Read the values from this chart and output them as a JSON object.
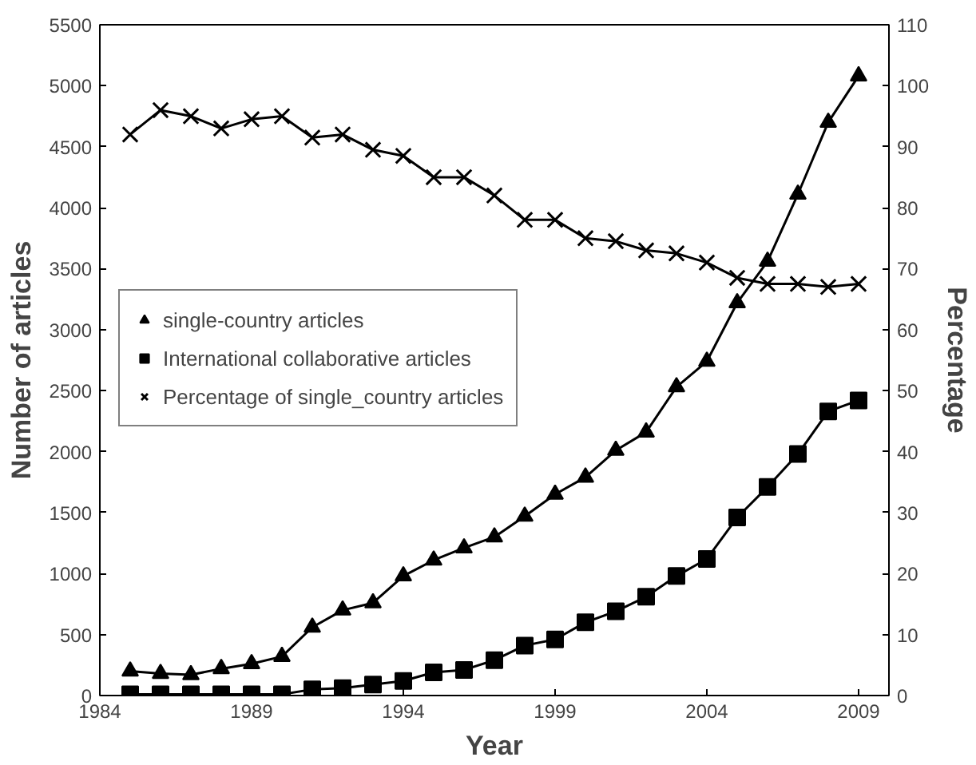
{
  "chart_data": {
    "type": "line",
    "xlabel": "Year",
    "ylabel": "Number of articles",
    "y2label": "Percentage",
    "x": [
      1985,
      1986,
      1987,
      1988,
      1989,
      1990,
      1991,
      1992,
      1993,
      1994,
      1995,
      1996,
      1997,
      1998,
      1999,
      2000,
      2001,
      2002,
      2003,
      2004,
      2005,
      2006,
      2007,
      2008,
      2009
    ],
    "series": [
      {
        "name": "single-country articles",
        "color": "#000000",
        "marker": "triangle",
        "values": [
          200,
          180,
          170,
          220,
          260,
          320,
          560,
          700,
          760,
          980,
          1110,
          1210,
          1300,
          1470,
          1650,
          1790,
          2010,
          2160,
          2530,
          2740,
          3220,
          3560,
          4110,
          4700,
          5080
        ]
      },
      {
        "name": "International collaborative articles",
        "color": "#000000",
        "marker": "square",
        "values": [
          10,
          10,
          10,
          10,
          10,
          10,
          50,
          60,
          90,
          120,
          190,
          210,
          290,
          410,
          460,
          600,
          690,
          810,
          980,
          1120,
          1460,
          1710,
          1980,
          2330,
          2420
        ]
      },
      {
        "name": "Percentage of single_country articles",
        "color": "#000000",
        "marker": "cross",
        "axis": "y2",
        "values": [
          92,
          96,
          95,
          93,
          94.5,
          95,
          91.5,
          92,
          89.5,
          88.5,
          85,
          85,
          82,
          78,
          78,
          75,
          74.5,
          73,
          72.5,
          71,
          68.5,
          67.5,
          67.5,
          67,
          67.5
        ]
      }
    ],
    "xlim": [
      1984,
      2010
    ],
    "xticks": [
      1984,
      1989,
      1994,
      1999,
      2004,
      2009
    ],
    "ylim": [
      0,
      5500
    ],
    "yticks": [
      0,
      500,
      1000,
      1500,
      2000,
      2500,
      3000,
      3500,
      4000,
      4500,
      5000,
      5500
    ],
    "y2lim": [
      0,
      110
    ],
    "y2ticks": [
      0,
      10,
      20,
      30,
      40,
      50,
      60,
      70,
      80,
      90,
      100,
      110
    ],
    "grid": false,
    "legend": "left",
    "line_style": "solid"
  }
}
